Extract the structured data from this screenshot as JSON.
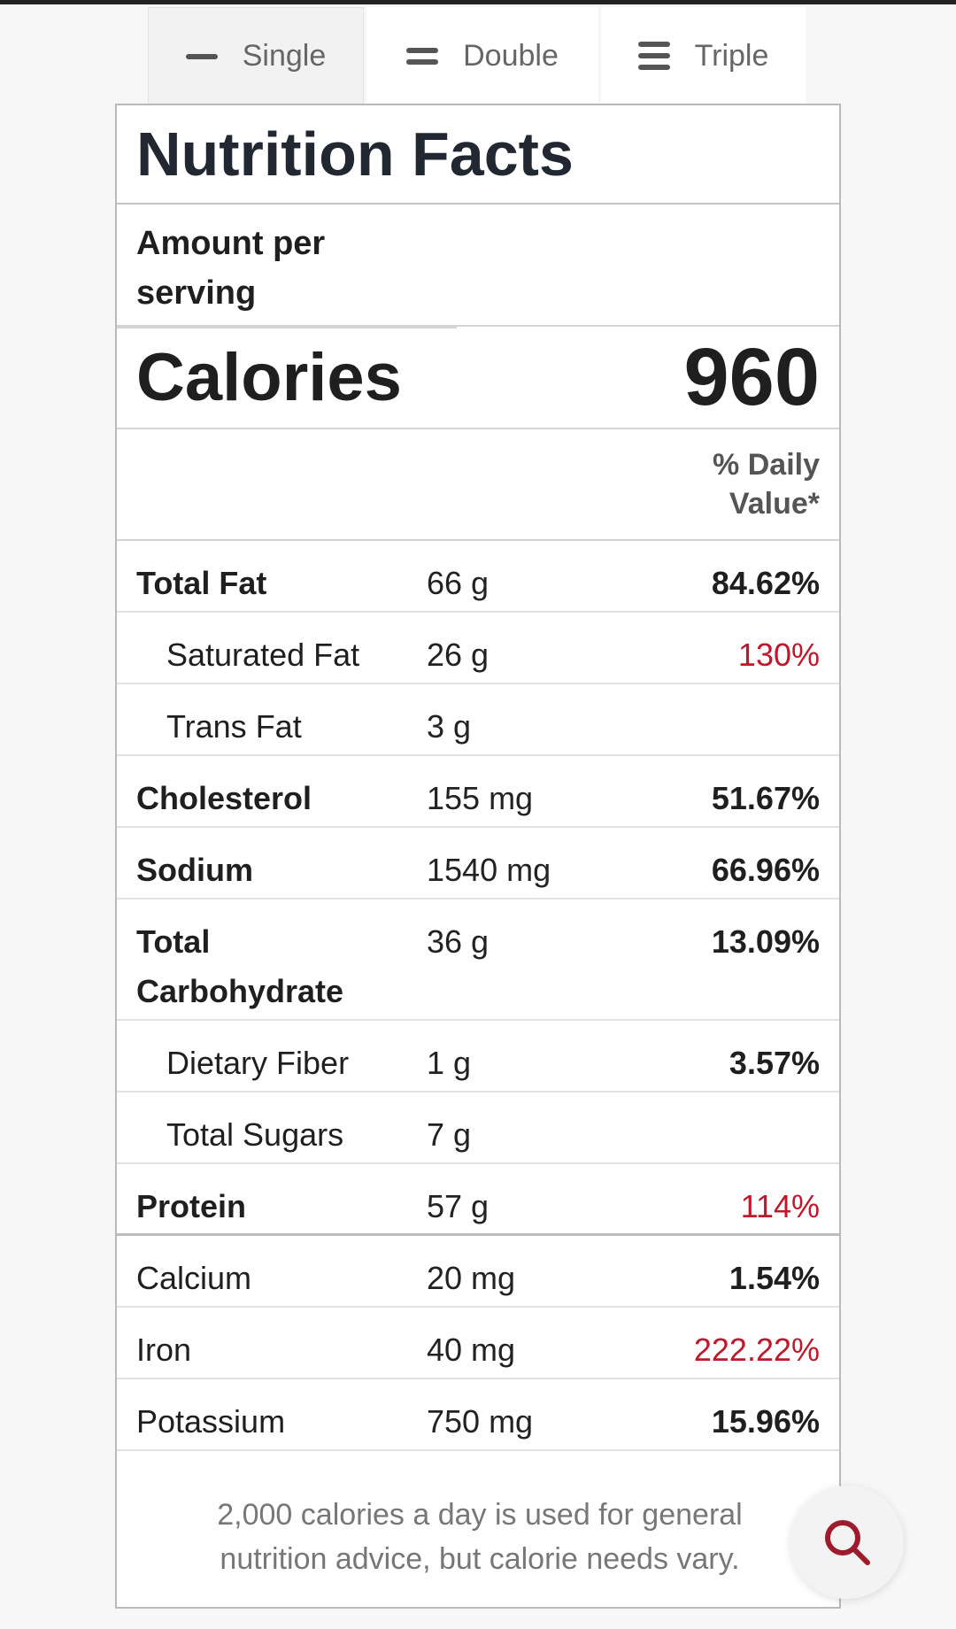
{
  "tabs": [
    {
      "label": "Single",
      "icon": "single-line-icon",
      "active": true
    },
    {
      "label": "Double",
      "icon": "double-line-icon",
      "active": false
    },
    {
      "label": "Triple",
      "icon": "triple-line-icon",
      "active": false
    }
  ],
  "label": {
    "title": "Nutrition Facts",
    "amount_per_serving": "Amount per serving",
    "calories_label": "Calories",
    "calories_value": "960",
    "daily_value_header": "% Daily Value*"
  },
  "nutrients": [
    {
      "name": "Total Fat",
      "amount": "66 g",
      "dv": "84.62%"
    },
    {
      "name": "Saturated Fat",
      "amount": "26 g",
      "dv": "130%"
    },
    {
      "name": "Trans Fat",
      "amount": "3 g",
      "dv": ""
    },
    {
      "name": "Cholesterol",
      "amount": "155 mg",
      "dv": "51.67%"
    },
    {
      "name": "Sodium",
      "amount": "1540 mg",
      "dv": "66.96%"
    },
    {
      "name": "Total Carbohydrate",
      "amount": "36 g",
      "dv": "13.09%"
    },
    {
      "name": "Dietary Fiber",
      "amount": "1 g",
      "dv": "3.57%"
    },
    {
      "name": "Total Sugars",
      "amount": "7 g",
      "dv": ""
    },
    {
      "name": "Protein",
      "amount": "57 g",
      "dv": "114%"
    },
    {
      "name": "Calcium",
      "amount": "20 mg",
      "dv": "1.54%"
    },
    {
      "name": "Iron",
      "amount": "40 mg",
      "dv": "222.22%"
    },
    {
      "name": "Potassium",
      "amount": "750 mg",
      "dv": "15.96%"
    }
  ],
  "footnote": "2,000 calories a day is used for general nutrition advice, but calorie needs vary.",
  "search_button": {
    "icon": "search-icon"
  },
  "colors": {
    "warning_red": "#c0182a",
    "search_icon": "#9e1b2b"
  }
}
